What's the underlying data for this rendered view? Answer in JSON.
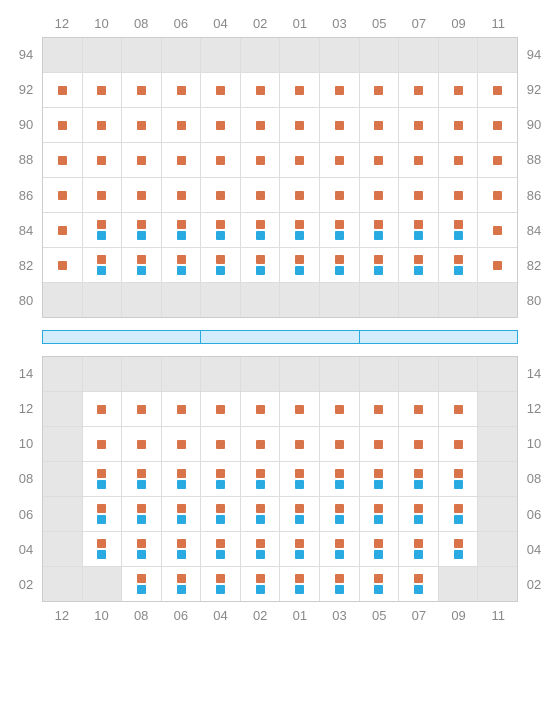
{
  "colors": {
    "orange": "#d9734a",
    "blue": "#29abe2",
    "inactive_bg": "#e6e6e6",
    "grid_border": "#cccccc",
    "cell_border": "#dddddd",
    "label_color": "#888888",
    "divider_fill": "#d4edfc",
    "divider_border": "#29abe2"
  },
  "columns": [
    "12",
    "10",
    "08",
    "06",
    "04",
    "02",
    "01",
    "03",
    "05",
    "07",
    "09",
    "11"
  ],
  "top_section": {
    "row_labels": [
      "94",
      "92",
      "90",
      "88",
      "86",
      "84",
      "82",
      "80"
    ],
    "grid": [
      [
        {
          "inactive": true
        },
        {
          "inactive": true
        },
        {
          "inactive": true
        },
        {
          "inactive": true
        },
        {
          "inactive": true
        },
        {
          "inactive": true
        },
        {
          "inactive": true
        },
        {
          "inactive": true
        },
        {
          "inactive": true
        },
        {
          "inactive": true
        },
        {
          "inactive": true
        },
        {
          "inactive": true
        }
      ],
      [
        {
          "m": [
            "o"
          ]
        },
        {
          "m": [
            "o"
          ]
        },
        {
          "m": [
            "o"
          ]
        },
        {
          "m": [
            "o"
          ]
        },
        {
          "m": [
            "o"
          ]
        },
        {
          "m": [
            "o"
          ]
        },
        {
          "m": [
            "o"
          ]
        },
        {
          "m": [
            "o"
          ]
        },
        {
          "m": [
            "o"
          ]
        },
        {
          "m": [
            "o"
          ]
        },
        {
          "m": [
            "o"
          ]
        },
        {
          "m": [
            "o"
          ]
        }
      ],
      [
        {
          "m": [
            "o"
          ]
        },
        {
          "m": [
            "o"
          ]
        },
        {
          "m": [
            "o"
          ]
        },
        {
          "m": [
            "o"
          ]
        },
        {
          "m": [
            "o"
          ]
        },
        {
          "m": [
            "o"
          ]
        },
        {
          "m": [
            "o"
          ]
        },
        {
          "m": [
            "o"
          ]
        },
        {
          "m": [
            "o"
          ]
        },
        {
          "m": [
            "o"
          ]
        },
        {
          "m": [
            "o"
          ]
        },
        {
          "m": [
            "o"
          ]
        }
      ],
      [
        {
          "m": [
            "o"
          ]
        },
        {
          "m": [
            "o"
          ]
        },
        {
          "m": [
            "o"
          ]
        },
        {
          "m": [
            "o"
          ]
        },
        {
          "m": [
            "o"
          ]
        },
        {
          "m": [
            "o"
          ]
        },
        {
          "m": [
            "o"
          ]
        },
        {
          "m": [
            "o"
          ]
        },
        {
          "m": [
            "o"
          ]
        },
        {
          "m": [
            "o"
          ]
        },
        {
          "m": [
            "o"
          ]
        },
        {
          "m": [
            "o"
          ]
        }
      ],
      [
        {
          "m": [
            "o"
          ]
        },
        {
          "m": [
            "o"
          ]
        },
        {
          "m": [
            "o"
          ]
        },
        {
          "m": [
            "o"
          ]
        },
        {
          "m": [
            "o"
          ]
        },
        {
          "m": [
            "o"
          ]
        },
        {
          "m": [
            "o"
          ]
        },
        {
          "m": [
            "o"
          ]
        },
        {
          "m": [
            "o"
          ]
        },
        {
          "m": [
            "o"
          ]
        },
        {
          "m": [
            "o"
          ]
        },
        {
          "m": [
            "o"
          ]
        }
      ],
      [
        {
          "m": [
            "o"
          ]
        },
        {
          "m": [
            "o",
            "b"
          ]
        },
        {
          "m": [
            "o",
            "b"
          ]
        },
        {
          "m": [
            "o",
            "b"
          ]
        },
        {
          "m": [
            "o",
            "b"
          ]
        },
        {
          "m": [
            "o",
            "b"
          ]
        },
        {
          "m": [
            "o",
            "b"
          ]
        },
        {
          "m": [
            "o",
            "b"
          ]
        },
        {
          "m": [
            "o",
            "b"
          ]
        },
        {
          "m": [
            "o",
            "b"
          ]
        },
        {
          "m": [
            "o",
            "b"
          ]
        },
        {
          "m": [
            "o"
          ]
        }
      ],
      [
        {
          "m": [
            "o"
          ]
        },
        {
          "m": [
            "o",
            "b"
          ]
        },
        {
          "m": [
            "o",
            "b"
          ]
        },
        {
          "m": [
            "o",
            "b"
          ]
        },
        {
          "m": [
            "o",
            "b"
          ]
        },
        {
          "m": [
            "o",
            "b"
          ]
        },
        {
          "m": [
            "o",
            "b"
          ]
        },
        {
          "m": [
            "o",
            "b"
          ]
        },
        {
          "m": [
            "o",
            "b"
          ]
        },
        {
          "m": [
            "o",
            "b"
          ]
        },
        {
          "m": [
            "o",
            "b"
          ]
        },
        {
          "m": [
            "o"
          ]
        }
      ],
      [
        {
          "inactive": true
        },
        {
          "inactive": true
        },
        {
          "inactive": true
        },
        {
          "inactive": true
        },
        {
          "inactive": true
        },
        {
          "inactive": true
        },
        {
          "inactive": true
        },
        {
          "inactive": true
        },
        {
          "inactive": true
        },
        {
          "inactive": true
        },
        {
          "inactive": true
        },
        {
          "inactive": true
        }
      ]
    ]
  },
  "divider_segments": 3,
  "bottom_section": {
    "row_labels": [
      "14",
      "12",
      "10",
      "08",
      "06",
      "04",
      "02"
    ],
    "grid": [
      [
        {
          "inactive": true
        },
        {
          "inactive": true
        },
        {
          "inactive": true
        },
        {
          "inactive": true
        },
        {
          "inactive": true
        },
        {
          "inactive": true
        },
        {
          "inactive": true
        },
        {
          "inactive": true
        },
        {
          "inactive": true
        },
        {
          "inactive": true
        },
        {
          "inactive": true
        },
        {
          "inactive": true
        }
      ],
      [
        {
          "inactive": true
        },
        {
          "m": [
            "o"
          ]
        },
        {
          "m": [
            "o"
          ]
        },
        {
          "m": [
            "o"
          ]
        },
        {
          "m": [
            "o"
          ]
        },
        {
          "m": [
            "o"
          ]
        },
        {
          "m": [
            "o"
          ]
        },
        {
          "m": [
            "o"
          ]
        },
        {
          "m": [
            "o"
          ]
        },
        {
          "m": [
            "o"
          ]
        },
        {
          "m": [
            "o"
          ]
        },
        {
          "inactive": true
        }
      ],
      [
        {
          "inactive": true
        },
        {
          "m": [
            "o"
          ]
        },
        {
          "m": [
            "o"
          ]
        },
        {
          "m": [
            "o"
          ]
        },
        {
          "m": [
            "o"
          ]
        },
        {
          "m": [
            "o"
          ]
        },
        {
          "m": [
            "o"
          ]
        },
        {
          "m": [
            "o"
          ]
        },
        {
          "m": [
            "o"
          ]
        },
        {
          "m": [
            "o"
          ]
        },
        {
          "m": [
            "o"
          ]
        },
        {
          "inactive": true
        }
      ],
      [
        {
          "inactive": true
        },
        {
          "m": [
            "o",
            "b"
          ]
        },
        {
          "m": [
            "o",
            "b"
          ]
        },
        {
          "m": [
            "o",
            "b"
          ]
        },
        {
          "m": [
            "o",
            "b"
          ]
        },
        {
          "m": [
            "o",
            "b"
          ]
        },
        {
          "m": [
            "o",
            "b"
          ]
        },
        {
          "m": [
            "o",
            "b"
          ]
        },
        {
          "m": [
            "o",
            "b"
          ]
        },
        {
          "m": [
            "o",
            "b"
          ]
        },
        {
          "m": [
            "o",
            "b"
          ]
        },
        {
          "inactive": true
        }
      ],
      [
        {
          "inactive": true
        },
        {
          "m": [
            "o",
            "b"
          ]
        },
        {
          "m": [
            "o",
            "b"
          ]
        },
        {
          "m": [
            "o",
            "b"
          ]
        },
        {
          "m": [
            "o",
            "b"
          ]
        },
        {
          "m": [
            "o",
            "b"
          ]
        },
        {
          "m": [
            "o",
            "b"
          ]
        },
        {
          "m": [
            "o",
            "b"
          ]
        },
        {
          "m": [
            "o",
            "b"
          ]
        },
        {
          "m": [
            "o",
            "b"
          ]
        },
        {
          "m": [
            "o",
            "b"
          ]
        },
        {
          "inactive": true
        }
      ],
      [
        {
          "inactive": true
        },
        {
          "m": [
            "o",
            "b"
          ]
        },
        {
          "m": [
            "o",
            "b"
          ]
        },
        {
          "m": [
            "o",
            "b"
          ]
        },
        {
          "m": [
            "o",
            "b"
          ]
        },
        {
          "m": [
            "o",
            "b"
          ]
        },
        {
          "m": [
            "o",
            "b"
          ]
        },
        {
          "m": [
            "o",
            "b"
          ]
        },
        {
          "m": [
            "o",
            "b"
          ]
        },
        {
          "m": [
            "o",
            "b"
          ]
        },
        {
          "m": [
            "o",
            "b"
          ]
        },
        {
          "inactive": true
        }
      ],
      [
        {
          "inactive": true
        },
        {
          "inactive": true
        },
        {
          "m": [
            "o",
            "b"
          ]
        },
        {
          "m": [
            "o",
            "b"
          ]
        },
        {
          "m": [
            "o",
            "b"
          ]
        },
        {
          "m": [
            "o",
            "b"
          ]
        },
        {
          "m": [
            "o",
            "b"
          ]
        },
        {
          "m": [
            "o",
            "b"
          ]
        },
        {
          "m": [
            "o",
            "b"
          ]
        },
        {
          "m": [
            "o",
            "b"
          ]
        },
        {
          "inactive": true
        },
        {
          "inactive": true
        }
      ]
    ]
  }
}
